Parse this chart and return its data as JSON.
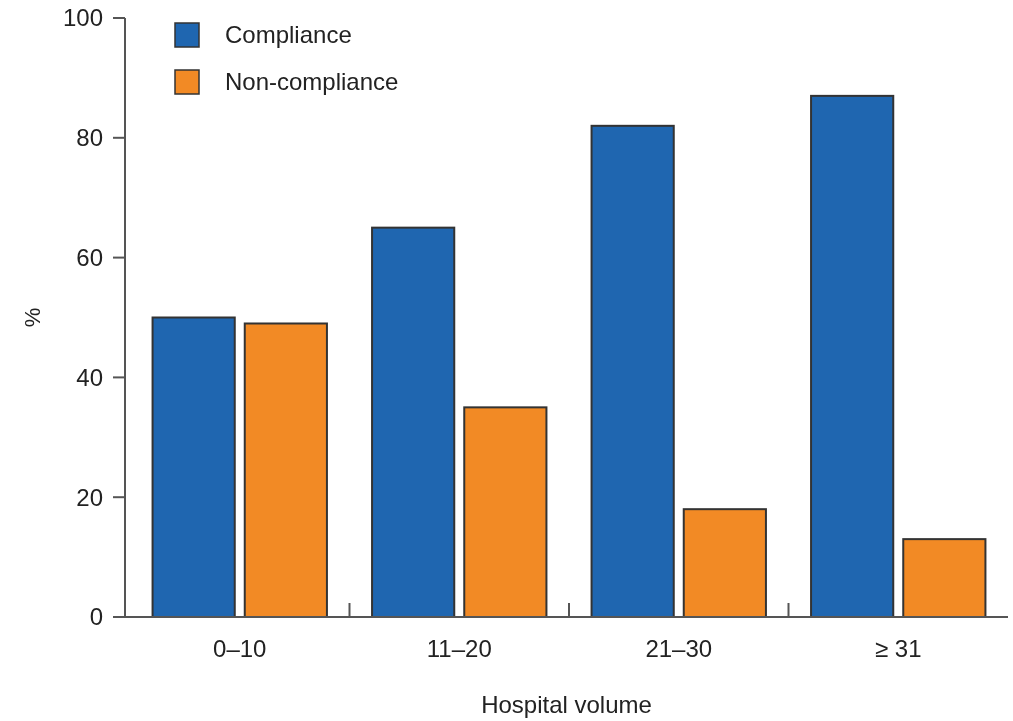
{
  "chart_data": {
    "type": "bar",
    "xlabel": "Hospital volume",
    "ylabel": "%",
    "categories": [
      "0–10",
      "11–20",
      "21–30",
      "≥ 31"
    ],
    "series": [
      {
        "name": "Compliance",
        "color": "#1f66b0",
        "values": [
          50,
          65,
          82,
          87
        ]
      },
      {
        "name": "Non-compliance",
        "color": "#f28a25",
        "values": [
          49,
          35,
          18,
          13
        ]
      }
    ],
    "ylim": [
      0,
      100
    ],
    "yticks": [
      0,
      20,
      40,
      60,
      80,
      100
    ],
    "grid": false,
    "legend": "top left"
  }
}
